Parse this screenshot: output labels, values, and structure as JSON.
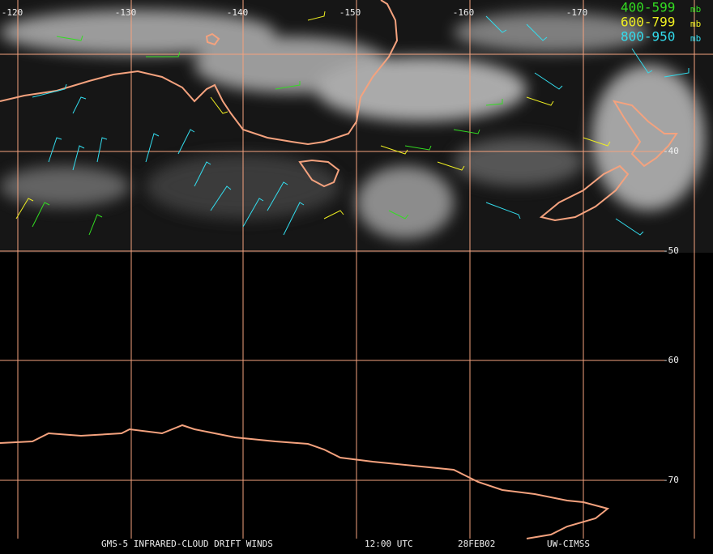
{
  "longitude_labels": [
    "-120",
    "-130",
    "-140",
    "-150",
    "-160",
    "-170"
  ],
  "latitude_labels": [
    "-40",
    "-50",
    "-60",
    "-70"
  ],
  "legend": [
    {
      "label": "400-599",
      "unit": "mb",
      "color": "#33dd22"
    },
    {
      "label": "600-799",
      "unit": "mb",
      "color": "#eeee22"
    },
    {
      "label": "800-950",
      "unit": "mb",
      "color": "#33ddee"
    }
  ],
  "footer": {
    "product": "GMS-5 INFRARED-CLOUD DRIFT WINDS",
    "time": "12:00 UTC",
    "date": "28FEB02",
    "source": "UW-CIMSS"
  }
}
